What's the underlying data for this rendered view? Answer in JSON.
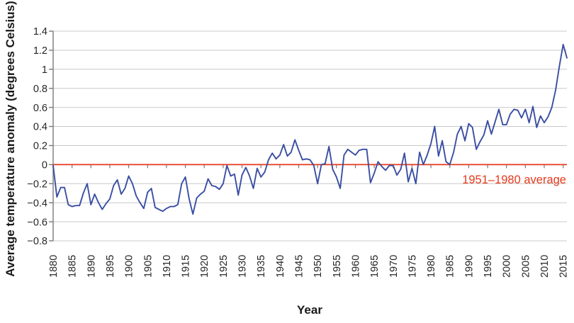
{
  "figure": {
    "y_axis_title": "Average temperature anomaly (degrees Celsius)",
    "x_axis_title": "Year",
    "reference_line_label": "1951–1980 average"
  },
  "chart_data": {
    "type": "line",
    "title": "",
    "xlabel": "Year",
    "ylabel": "Average temperature anomaly (degrees Celsius)",
    "grid": "horizontal",
    "xlim": [
      1880,
      2016
    ],
    "ylim": [
      -0.8,
      1.4
    ],
    "x_ticks": [
      1880,
      1885,
      1890,
      1895,
      1900,
      1905,
      1910,
      1915,
      1920,
      1925,
      1930,
      1935,
      1940,
      1945,
      1950,
      1955,
      1960,
      1965,
      1970,
      1975,
      1980,
      1985,
      1990,
      1995,
      2000,
      2005,
      2010,
      2015
    ],
    "y_ticks": [
      {
        "value": 1.4,
        "label": "1.4"
      },
      {
        "value": 1.2,
        "label": "1.2"
      },
      {
        "value": 1.0,
        "label": "1"
      },
      {
        "value": 0.8,
        "label": "0.8"
      },
      {
        "value": 0.6,
        "label": "0.6"
      },
      {
        "value": 0.4,
        "label": "0.4"
      },
      {
        "value": 0.2,
        "label": "0.2"
      },
      {
        "value": 0.0,
        "label": "0"
      },
      {
        "value": -0.2,
        "label": "−0.2"
      },
      {
        "value": -0.4,
        "label": "−0.4"
      },
      {
        "value": -0.6,
        "label": "−0.6"
      },
      {
        "value": -0.8,
        "label": "−0.8"
      }
    ],
    "reference_line": {
      "value": 0,
      "label": "1951–1980 average",
      "color": "#e5391b"
    },
    "series_name": "Average temperature anomaly (degrees Celsius)",
    "series_color": "#3a4ea3",
    "colors": {
      "grid": "#c9c9c9",
      "axis": "#7a7a7a",
      "tick_text": "#262626",
      "title_text": "#1a1a1a"
    },
    "years": [
      1880,
      1881,
      1882,
      1883,
      1884,
      1885,
      1886,
      1887,
      1888,
      1889,
      1890,
      1891,
      1892,
      1893,
      1894,
      1895,
      1896,
      1897,
      1898,
      1899,
      1900,
      1901,
      1902,
      1903,
      1904,
      1905,
      1906,
      1907,
      1908,
      1909,
      1910,
      1911,
      1912,
      1913,
      1914,
      1915,
      1916,
      1917,
      1918,
      1919,
      1920,
      1921,
      1922,
      1923,
      1924,
      1925,
      1926,
      1927,
      1928,
      1929,
      1930,
      1931,
      1932,
      1933,
      1934,
      1935,
      1936,
      1937,
      1938,
      1939,
      1940,
      1941,
      1942,
      1943,
      1944,
      1945,
      1946,
      1947,
      1948,
      1949,
      1950,
      1951,
      1952,
      1953,
      1954,
      1955,
      1956,
      1957,
      1958,
      1959,
      1960,
      1961,
      1962,
      1963,
      1964,
      1965,
      1966,
      1967,
      1968,
      1969,
      1970,
      1971,
      1972,
      1973,
      1974,
      1975,
      1976,
      1977,
      1978,
      1979,
      1980,
      1981,
      1982,
      1983,
      1984,
      1985,
      1986,
      1987,
      1988,
      1989,
      1990,
      1991,
      1992,
      1993,
      1994,
      1995,
      1996,
      1997,
      1998,
      1999,
      2000,
      2001,
      2002,
      2003,
      2004,
      2005,
      2006,
      2007,
      2008,
      2009,
      2010,
      2011,
      2012,
      2013,
      2014,
      2015,
      2016
    ],
    "values": [
      -0.01,
      -0.34,
      -0.24,
      -0.24,
      -0.42,
      -0.44,
      -0.43,
      -0.43,
      -0.3,
      -0.2,
      -0.42,
      -0.31,
      -0.4,
      -0.47,
      -0.41,
      -0.36,
      -0.22,
      -0.16,
      -0.31,
      -0.25,
      -0.12,
      -0.2,
      -0.33,
      -0.4,
      -0.46,
      -0.29,
      -0.25,
      -0.45,
      -0.47,
      -0.49,
      -0.46,
      -0.44,
      -0.44,
      -0.42,
      -0.2,
      -0.13,
      -0.36,
      -0.52,
      -0.35,
      -0.31,
      -0.28,
      -0.15,
      -0.22,
      -0.23,
      -0.26,
      -0.2,
      -0.01,
      -0.12,
      -0.1,
      -0.32,
      -0.11,
      -0.03,
      -0.12,
      -0.25,
      -0.04,
      -0.13,
      -0.08,
      0.05,
      0.12,
      0.06,
      0.1,
      0.21,
      0.09,
      0.13,
      0.26,
      0.15,
      0.05,
      0.06,
      0.05,
      -0.01,
      -0.2,
      0.0,
      0.01,
      0.19,
      -0.05,
      -0.13,
      -0.25,
      0.1,
      0.16,
      0.13,
      0.1,
      0.15,
      0.16,
      0.16,
      -0.19,
      -0.09,
      0.03,
      -0.02,
      -0.06,
      -0.01,
      -0.01,
      -0.11,
      -0.05,
      0.12,
      -0.18,
      -0.04,
      -0.2,
      0.13,
      0.0,
      0.1,
      0.22,
      0.4,
      0.09,
      0.25,
      0.03,
      0.0,
      0.13,
      0.32,
      0.4,
      0.25,
      0.43,
      0.39,
      0.16,
      0.24,
      0.31,
      0.46,
      0.32,
      0.45,
      0.58,
      0.42,
      0.42,
      0.53,
      0.58,
      0.57,
      0.49,
      0.58,
      0.44,
      0.61,
      0.39,
      0.51,
      0.44,
      0.5,
      0.6,
      0.78,
      1.03,
      1.26,
      1.12
    ]
  }
}
